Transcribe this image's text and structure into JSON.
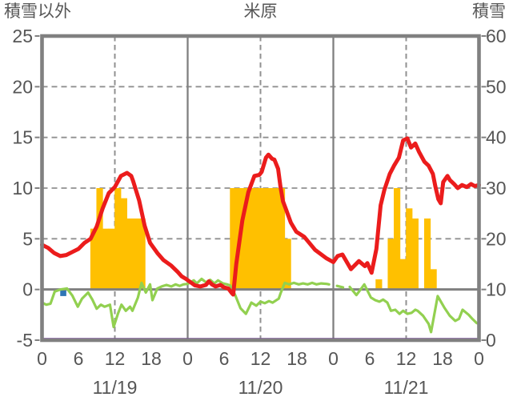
{
  "header": {
    "left_axis_title": "積雪以外",
    "station_title": "米原",
    "right_axis_title": "積雪"
  },
  "colors": {
    "temperature_line": "#EB1C1C",
    "sunshine_bars": "#FFC000",
    "green_line": "#92D050",
    "snow_depth_line": "#7030A0",
    "precipitation_bar": "#2E75B6",
    "frame_gray": "#808080",
    "grid_gray": "#909090",
    "text_gray": "#565656"
  },
  "chart_data": {
    "type": "mixed",
    "title": "米原",
    "left_axis": {
      "title": "積雪以外",
      "min": -5,
      "max": 25,
      "ticks": [
        25,
        20,
        15,
        10,
        5,
        0,
        -5
      ]
    },
    "right_axis": {
      "title": "積雪",
      "min": 0,
      "max": 60,
      "ticks": [
        60,
        50,
        40,
        30,
        20,
        10,
        0
      ]
    },
    "x_axis": {
      "dates": [
        "11/19",
        "11/20",
        "11/21"
      ],
      "hour_ticks": [
        0,
        6,
        12,
        18
      ],
      "closing_tick": 0,
      "hours_total": 72,
      "dashed_vlines_abs_hours": [
        12,
        36,
        60
      ],
      "solid_vlines_abs_hours": [
        24,
        48
      ]
    },
    "grid": {
      "dashed_hlines_left_values": [
        20,
        15,
        10,
        5
      ],
      "zero_line_left_value": 0
    },
    "series": [
      {
        "name": "sunshine-bars",
        "type": "bar",
        "color": "#FFC000",
        "axis": "left",
        "bars": [
          [
            0,
            8,
            6
          ],
          [
            0,
            9,
            10
          ],
          [
            0,
            10,
            6
          ],
          [
            0,
            11,
            6
          ],
          [
            0,
            12,
            10
          ],
          [
            0,
            13,
            9
          ],
          [
            0,
            14,
            7
          ],
          [
            0,
            15,
            7
          ],
          [
            0,
            16,
            7
          ],
          [
            1,
            7,
            10
          ],
          [
            1,
            8,
            10
          ],
          [
            1,
            9,
            10
          ],
          [
            1,
            10,
            10
          ],
          [
            1,
            11,
            10
          ],
          [
            1,
            12,
            10
          ],
          [
            1,
            13,
            10
          ],
          [
            1,
            14,
            10
          ],
          [
            1,
            15,
            10
          ],
          [
            1,
            16,
            5
          ],
          [
            2,
            7,
            1
          ],
          [
            2,
            9,
            5
          ],
          [
            2,
            10,
            10
          ],
          [
            2,
            11,
            3
          ],
          [
            2,
            12,
            8
          ],
          [
            2,
            13,
            7
          ],
          [
            2,
            15,
            7
          ],
          [
            2,
            16,
            2
          ]
        ]
      },
      {
        "name": "precipitation-bar",
        "type": "bar-below-zero",
        "color": "#2E75B6",
        "axis": "left",
        "bars": [
          [
            0,
            3,
            -0.65
          ]
        ]
      },
      {
        "name": "green-line",
        "type": "line",
        "color": "#92D050",
        "axis": "left",
        "width": 3.2,
        "segments": [
          [
            [
              0,
              -1.3
            ],
            [
              0.7,
              -1.5
            ],
            [
              1.4,
              -1.4
            ],
            [
              2.1,
              -0.2
            ],
            [
              3,
              0
            ],
            [
              4.1,
              0.1
            ],
            [
              5,
              -0.6
            ],
            [
              5.9,
              -1.7
            ],
            [
              6.6,
              -0.9
            ],
            [
              7.6,
              -0.3
            ],
            [
              8.3,
              -1.0
            ],
            [
              9,
              -1.9
            ],
            [
              9.7,
              -1.5
            ],
            [
              10.3,
              -1.7
            ],
            [
              11.2,
              -1.5
            ],
            [
              11.8,
              -3.7
            ],
            [
              12.5,
              -2.4
            ],
            [
              13.1,
              -1.5
            ],
            [
              13.8,
              -2.1
            ],
            [
              14.5,
              -1.7
            ],
            [
              14.9,
              -2.1
            ],
            [
              15.8,
              -0.8
            ],
            [
              16.4,
              0.65
            ],
            [
              17.1,
              -0.3
            ],
            [
              17.8,
              0.5
            ],
            [
              18.2,
              -1.05
            ],
            [
              19,
              0.1
            ],
            [
              19.7,
              0.3
            ],
            [
              20.5,
              0.45
            ],
            [
              21.3,
              0.3
            ],
            [
              22,
              0.5
            ],
            [
              22.7,
              0.35
            ],
            [
              23.3,
              0.5
            ],
            [
              24,
              0.55
            ],
            [
              25,
              0.9
            ],
            [
              25.5,
              0.6
            ],
            [
              26.3,
              1.05
            ],
            [
              27,
              0.7
            ],
            [
              27.7,
              0.95
            ],
            [
              28.4,
              0.6
            ],
            [
              29,
              0.9
            ],
            [
              29.8,
              0.6
            ],
            [
              30.5,
              0.5
            ],
            [
              31,
              0.4
            ],
            [
              31.8,
              -0.5
            ],
            [
              32.7,
              -1.85
            ],
            [
              33.6,
              -2.4
            ],
            [
              34.5,
              -1.3
            ],
            [
              35.3,
              -1.6
            ],
            [
              36,
              -1.2
            ],
            [
              36.7,
              -1.35
            ],
            [
              37.4,
              -1.15
            ],
            [
              38,
              -1.3
            ],
            [
              39,
              -0.9
            ],
            [
              39.3,
              -0.4
            ],
            [
              40,
              0.65
            ],
            [
              40.7,
              0.5
            ],
            [
              41.5,
              0.65
            ],
            [
              42.3,
              0.5
            ],
            [
              43,
              0.6
            ],
            [
              43.8,
              0.5
            ],
            [
              44.5,
              0.65
            ],
            [
              45.2,
              0.5
            ],
            [
              46,
              0.6
            ],
            [
              46.9,
              0.55
            ],
            [
              47.3,
              0.5
            ]
          ],
          [
            [
              48.6,
              0.35
            ],
            [
              49.6,
              0.2
            ]
          ],
          [
            [
              50.7,
              0.25
            ],
            [
              51.8,
              -0.55
            ],
            [
              52.5,
              0
            ],
            [
              53.1,
              0.5
            ],
            [
              54.2,
              -0.8
            ],
            [
              54.9,
              -1.05
            ],
            [
              55.6,
              -1.2
            ],
            [
              56.2,
              -1.0
            ],
            [
              56.9,
              -1.3
            ],
            [
              57.5,
              -2.1
            ],
            [
              58.2,
              -2.0
            ],
            [
              58.9,
              -2.4
            ],
            [
              59.5,
              -2.1
            ],
            [
              60.2,
              -2.4
            ],
            [
              60.9,
              -2.3
            ],
            [
              61.5,
              -2.0
            ],
            [
              61.9,
              -2.1
            ],
            [
              62.8,
              -2.6
            ],
            [
              63.7,
              -3.4
            ],
            [
              64.1,
              -4.2
            ],
            [
              65.2,
              -0.65
            ],
            [
              66.3,
              -1.8
            ],
            [
              67.2,
              -2.6
            ],
            [
              68.1,
              -3.1
            ],
            [
              68.7,
              -2.9
            ],
            [
              69.3,
              -2.0
            ],
            [
              70.3,
              -2.5
            ],
            [
              70.9,
              -2.9
            ],
            [
              71.6,
              -3.3
            ],
            [
              72,
              -3.4
            ]
          ]
        ]
      },
      {
        "name": "temperature-line",
        "type": "line",
        "color": "#EB1C1C",
        "axis": "left",
        "width": 5,
        "segments": [
          [
            [
              0,
              4.4
            ],
            [
              1,
              4.1
            ],
            [
              2,
              3.6
            ],
            [
              3,
              3.3
            ],
            [
              4,
              3.4
            ],
            [
              5,
              3.7
            ],
            [
              6,
              4.0
            ],
            [
              7,
              4.6
            ],
            [
              8,
              5.0
            ],
            [
              9,
              6.2
            ],
            [
              10,
              8.0
            ],
            [
              11,
              9.5
            ],
            [
              12,
              10.1
            ],
            [
              13,
              11.2
            ],
            [
              14,
              11.5
            ],
            [
              14.7,
              11.2
            ],
            [
              15,
              10.7
            ],
            [
              16,
              8.8
            ],
            [
              16.9,
              6.3
            ],
            [
              17.8,
              4.6
            ],
            [
              19,
              3.6
            ],
            [
              20,
              2.9
            ],
            [
              21.3,
              2.35
            ],
            [
              22.4,
              1.7
            ],
            [
              23,
              1.3
            ],
            [
              23.7,
              1.05
            ],
            [
              24.6,
              0.65
            ],
            [
              25.2,
              0.4
            ],
            [
              26.1,
              0.3
            ],
            [
              27,
              0.45
            ],
            [
              27.5,
              0.8
            ],
            [
              28,
              0.5
            ],
            [
              28.6,
              0.3
            ],
            [
              29.4,
              0.45
            ],
            [
              30,
              0.2
            ],
            [
              30.7,
              0.1
            ],
            [
              31.2,
              -0.3
            ],
            [
              31.5,
              -0.5
            ],
            [
              32,
              2.5
            ],
            [
              33,
              6.8
            ],
            [
              34,
              9.6
            ],
            [
              35,
              11.2
            ],
            [
              35.8,
              11.3
            ],
            [
              36.2,
              11.6
            ],
            [
              36.9,
              13.0
            ],
            [
              37.3,
              13.3
            ],
            [
              37.9,
              12.9
            ],
            [
              38.3,
              12.8
            ],
            [
              38.9,
              11.9
            ],
            [
              39.3,
              10.1
            ],
            [
              39.7,
              8.7
            ],
            [
              40.2,
              7.9
            ],
            [
              41,
              6.6
            ],
            [
              41.9,
              5.7
            ],
            [
              43.2,
              5.2
            ],
            [
              45,
              3.9
            ],
            [
              46.8,
              3.1
            ],
            [
              48,
              2.7
            ],
            [
              48.7,
              3.3
            ],
            [
              49.5,
              3.45
            ],
            [
              50.9,
              2.0
            ],
            [
              52.2,
              2.8
            ],
            [
              53.2,
              2.3
            ],
            [
              53.6,
              2.6
            ],
            [
              54.3,
              1.65
            ],
            [
              55.1,
              4.0
            ],
            [
              55.8,
              8.3
            ],
            [
              56.4,
              9.8
            ],
            [
              57.3,
              11.4
            ],
            [
              58,
              12.2
            ],
            [
              58.8,
              13.0
            ],
            [
              59.5,
              14.7
            ],
            [
              60.2,
              14.9
            ],
            [
              60.8,
              14.0
            ],
            [
              61.5,
              14.4
            ],
            [
              62.1,
              13.6
            ],
            [
              63,
              12.6
            ],
            [
              63.7,
              12.2
            ],
            [
              64.4,
              11.4
            ],
            [
              64.8,
              10.2
            ],
            [
              65.3,
              8.9
            ],
            [
              65.7,
              8.5
            ],
            [
              66.1,
              10.6
            ],
            [
              66.8,
              11.2
            ],
            [
              67.2,
              10.8
            ],
            [
              67.9,
              10.4
            ],
            [
              68.5,
              10.0
            ],
            [
              69.2,
              10.3
            ],
            [
              70,
              10.1
            ],
            [
              70.7,
              10.4
            ],
            [
              71.3,
              10.2
            ],
            [
              72,
              10.3
            ]
          ]
        ]
      },
      {
        "name": "snow-depth-line",
        "type": "line",
        "color": "#7030A0",
        "axis": "left",
        "width": 3,
        "segments": [
          [
            [
              0,
              -4.9
            ],
            [
              72,
              -4.9
            ]
          ]
        ]
      }
    ]
  }
}
